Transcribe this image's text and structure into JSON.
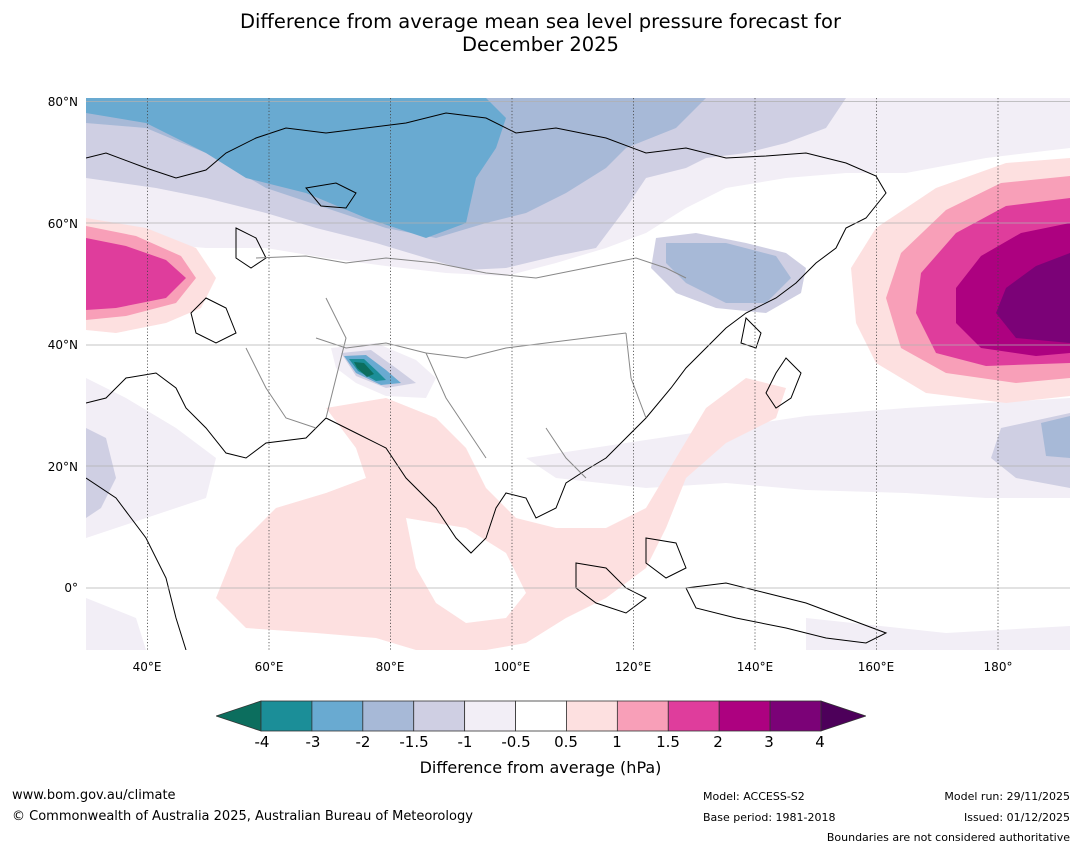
{
  "title": {
    "line1": "Difference from average mean sea level pressure forecast for",
    "line2": "December 2025"
  },
  "map": {
    "lat_labels": [
      "80°N",
      "60°N",
      "40°N",
      "20°N",
      "0°"
    ],
    "lon_labels": [
      "40°E",
      "60°E",
      "80°E",
      "100°E",
      "120°E",
      "140°E",
      "160°E",
      "180°"
    ],
    "extent": {
      "lon_min": 30,
      "lon_max": 192,
      "lat_min": -10,
      "lat_max": 81
    }
  },
  "colorbar": {
    "tick_labels": [
      "-4",
      "-3",
      "-2",
      "-1.5",
      "-1",
      "-0.5",
      "0.5",
      "1",
      "1.5",
      "2",
      "3",
      "4"
    ],
    "colors": [
      "#0c6e5e",
      "#1b8e98",
      "#69aad1",
      "#a7b9d7",
      "#cfcfe3",
      "#f2eef6",
      "#ffffff",
      "#fde0e0",
      "#f89fb8",
      "#df3d9c",
      "#ad0180",
      "#7b0277",
      "#4d005a"
    ],
    "title": "Difference from average (hPa)"
  },
  "footer": {
    "url": "www.bom.gov.au/climate",
    "copyright": "© Commonwealth of Australia 2025, Australian Bureau of Meteorology",
    "model": "Model: ACCESS-S2",
    "base_period": "Base period: 1981-2018",
    "model_run": "Model run: 29/11/2025",
    "issued": "Issued: 01/12/2025",
    "disclaimer": "Boundaries are not considered authoritative"
  }
}
